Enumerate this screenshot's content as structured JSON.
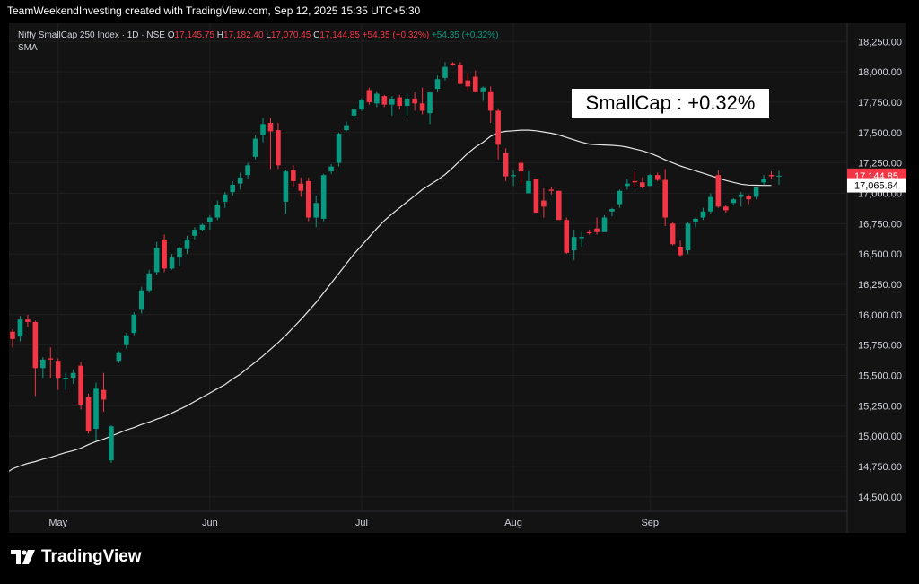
{
  "caption": "TeamWeekendInvesting created with TradingView.com, Sep 12, 2025 15:35 UTC+5:30",
  "legend": {
    "title": "Nifty SmallCap 250 Index · 1D · NSE",
    "o_label": "O",
    "o_value": "17,145.75",
    "h_label": "H",
    "h_value": "17,182.40",
    "l_label": "L",
    "l_value": "17,070.45",
    "c_label": "C",
    "c_value": "17,144.85",
    "change": "+54.35 (+0.32%)",
    "change2": "+54.35 (+0.32%)",
    "indicator": "SMA"
  },
  "annotation": "SmallCap : +0.32%",
  "brand": {
    "name": "TradingView",
    "icon": "tradingview-logo-icon"
  },
  "colors": {
    "up": "#089981",
    "down": "#f23645",
    "sma": "#e6e6e6",
    "background": "#000000",
    "panel": "#131313"
  },
  "chart_data": {
    "type": "candlestick",
    "y_ticks": [
      "18,250.00",
      "18,000.00",
      "17,750.00",
      "17,500.00",
      "17,250.00",
      "17,000.00",
      "16,750.00",
      "16,500.00",
      "16,250.00",
      "16,000.00",
      "15,750.00",
      "15,500.00",
      "15,250.00",
      "15,000.00",
      "14,750.00",
      "14,500.00"
    ],
    "y_tick_values": [
      18250,
      18000,
      17750,
      17500,
      17250,
      17000,
      16750,
      16500,
      16250,
      16000,
      15750,
      15500,
      15250,
      15000,
      14750,
      14500
    ],
    "ylim": [
      14380,
      18400
    ],
    "x_labels": [
      "May",
      "Jun",
      "Jul",
      "Aug",
      "Sep"
    ],
    "x_label_positions": [
      6,
      26,
      46,
      66,
      84
    ],
    "price_labels": [
      {
        "value": 17144.85,
        "text": "17,144.85",
        "kind": "last"
      },
      {
        "value": 17065.64,
        "text": "17,065.64",
        "kind": "sma"
      }
    ],
    "candles": [
      [
        15860,
        15880,
        15730,
        15800
      ],
      [
        15820,
        15990,
        15780,
        15960
      ],
      [
        15960,
        16000,
        15900,
        15940
      ],
      [
        15940,
        15950,
        15330,
        15560
      ],
      [
        15560,
        15650,
        15480,
        15630
      ],
      [
        15640,
        15730,
        15480,
        15630
      ],
      [
        15620,
        15640,
        15380,
        15480
      ],
      [
        15480,
        15520,
        15380,
        15480
      ],
      [
        15480,
        15550,
        15430,
        15520
      ],
      [
        15580,
        15610,
        15220,
        15260
      ],
      [
        15320,
        15350,
        15020,
        15040
      ],
      [
        15060,
        15440,
        14960,
        15390
      ],
      [
        15380,
        15520,
        15200,
        15300
      ],
      [
        14800,
        15090,
        14780,
        15080
      ],
      [
        15620,
        15700,
        15600,
        15690
      ],
      [
        15750,
        15850,
        15720,
        15830
      ],
      [
        15850,
        16020,
        15830,
        16000
      ],
      [
        16040,
        16230,
        16010,
        16200
      ],
      [
        16200,
        16370,
        16180,
        16340
      ],
      [
        16350,
        16600,
        16330,
        16550
      ],
      [
        16620,
        16660,
        16350,
        16380
      ],
      [
        16380,
        16500,
        16370,
        16470
      ],
      [
        16470,
        16560,
        16400,
        16550
      ],
      [
        16540,
        16650,
        16500,
        16620
      ],
      [
        16650,
        16720,
        16620,
        16700
      ],
      [
        16700,
        16750,
        16690,
        16740
      ],
      [
        16760,
        16820,
        16700,
        16800
      ],
      [
        16800,
        16940,
        16780,
        16900
      ],
      [
        16930,
        17010,
        16880,
        16990
      ],
      [
        17010,
        17100,
        16980,
        17070
      ],
      [
        17080,
        17170,
        17030,
        17130
      ],
      [
        17150,
        17250,
        17120,
        17230
      ],
      [
        17300,
        17480,
        17280,
        17450
      ],
      [
        17480,
        17620,
        17420,
        17570
      ],
      [
        17580,
        17620,
        17200,
        17510
      ],
      [
        17520,
        17580,
        17200,
        17230
      ],
      [
        16930,
        17190,
        16830,
        17180
      ],
      [
        17190,
        17230,
        17050,
        17100
      ],
      [
        17080,
        17130,
        16970,
        17020
      ],
      [
        17100,
        17130,
        16770,
        16800
      ],
      [
        16800,
        16980,
        16720,
        16920
      ],
      [
        16790,
        17160,
        16770,
        17150
      ],
      [
        17180,
        17240,
        17160,
        17220
      ],
      [
        17250,
        17500,
        17220,
        17490
      ],
      [
        17520,
        17590,
        17510,
        17560
      ],
      [
        17640,
        17720,
        17610,
        17690
      ],
      [
        17690,
        17780,
        17680,
        17770
      ],
      [
        17850,
        17870,
        17730,
        17750
      ],
      [
        17740,
        17840,
        17710,
        17820
      ],
      [
        17800,
        17810,
        17710,
        17730
      ],
      [
        17730,
        17800,
        17640,
        17780
      ],
      [
        17790,
        17810,
        17690,
        17720
      ],
      [
        17720,
        17820,
        17640,
        17780
      ],
      [
        17780,
        17830,
        17680,
        17740
      ],
      [
        17740,
        17870,
        17650,
        17680
      ],
      [
        17660,
        17840,
        17570,
        17830
      ],
      [
        17860,
        17970,
        17840,
        17940
      ],
      [
        17950,
        18080,
        17930,
        18040
      ],
      [
        18070,
        18080,
        18050,
        18060
      ],
      [
        18060,
        18080,
        17900,
        17900
      ],
      [
        17930,
        17990,
        17850,
        17880
      ],
      [
        17960,
        18010,
        17830,
        17840
      ],
      [
        17840,
        17880,
        17760,
        17870
      ],
      [
        17840,
        17880,
        17580,
        17680
      ],
      [
        17680,
        17700,
        17280,
        17400
      ],
      [
        17330,
        17370,
        17100,
        17140
      ],
      [
        17140,
        17190,
        17060,
        17150
      ],
      [
        17250,
        17280,
        17070,
        17180
      ],
      [
        17000,
        17180,
        17000,
        17100
      ],
      [
        17120,
        17120,
        16840,
        16840
      ],
      [
        16940,
        17040,
        16800,
        16890
      ],
      [
        17030,
        17050,
        16990,
        17020
      ],
      [
        17020,
        17020,
        16780,
        16780
      ],
      [
        16780,
        16800,
        16500,
        16510
      ],
      [
        16530,
        16700,
        16450,
        16640
      ],
      [
        16630,
        16680,
        16560,
        16640
      ],
      [
        16680,
        16700,
        16660,
        16670
      ],
      [
        16710,
        16800,
        16660,
        16680
      ],
      [
        16680,
        16820,
        16680,
        16800
      ],
      [
        16850,
        16880,
        16810,
        16870
      ],
      [
        16910,
        17030,
        16880,
        17020
      ],
      [
        17060,
        17120,
        17030,
        17080
      ],
      [
        17100,
        17180,
        17050,
        17090
      ],
      [
        17090,
        17130,
        17040,
        17050
      ],
      [
        17060,
        17160,
        17060,
        17150
      ],
      [
        17150,
        17170,
        17100,
        17110
      ],
      [
        17110,
        17200,
        16730,
        16800
      ],
      [
        16750,
        16760,
        16570,
        16580
      ],
      [
        16560,
        16610,
        16480,
        16490
      ],
      [
        16530,
        16760,
        16500,
        16750
      ],
      [
        16760,
        16800,
        16720,
        16790
      ],
      [
        16800,
        16880,
        16780,
        16850
      ],
      [
        16850,
        17000,
        16830,
        16970
      ],
      [
        17150,
        17190,
        16880,
        16890
      ],
      [
        16890,
        16900,
        16840,
        16860
      ],
      [
        16920,
        16960,
        16900,
        16950
      ],
      [
        16970,
        17010,
        16890,
        16990
      ],
      [
        16980,
        16990,
        16910,
        16950
      ],
      [
        16970,
        17050,
        16950,
        17050
      ],
      [
        17090,
        17150,
        17070,
        17120
      ],
      [
        17150,
        17180,
        17120,
        17140
      ],
      [
        17140,
        17185,
        17070,
        17145
      ]
    ],
    "sma": [
      14710,
      14730,
      14755,
      14775,
      14790,
      14810,
      14825,
      14845,
      14865,
      14880,
      14900,
      14930,
      14955,
      14975,
      15000,
      15025,
      15050,
      15070,
      15095,
      15115,
      15140,
      15160,
      15190,
      15220,
      15250,
      15285,
      15320,
      15355,
      15390,
      15425,
      15470,
      15510,
      15560,
      15610,
      15660,
      15715,
      15770,
      15830,
      15895,
      15960,
      16030,
      16100,
      16180,
      16260,
      16340,
      16420,
      16500,
      16570,
      16640,
      16710,
      16775,
      16830,
      16880,
      16930,
      16980,
      17030,
      17070,
      17110,
      17155,
      17210,
      17270,
      17330,
      17380,
      17420,
      17470,
      17500,
      17510,
      17515,
      17520,
      17520,
      17515,
      17505,
      17495,
      17480,
      17460,
      17440,
      17420,
      17405,
      17400,
      17398,
      17395,
      17390,
      17380,
      17365,
      17350,
      17330,
      17305,
      17275,
      17250,
      17225,
      17205,
      17185,
      17165,
      17145,
      17125,
      17105,
      17090,
      17075,
      17068,
      17066,
      17065,
      17065
    ]
  }
}
